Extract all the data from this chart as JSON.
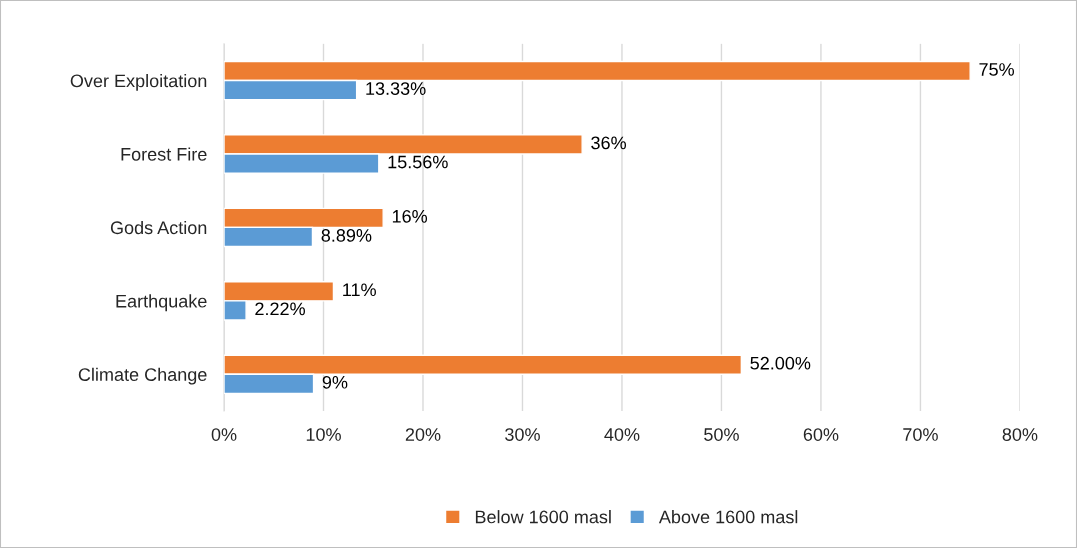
{
  "chart_data": {
    "type": "bar",
    "orientation": "horizontal",
    "categories": [
      "Over Exploitation",
      "Forest Fire",
      "Gods Action",
      "Earthquake",
      "Climate Change"
    ],
    "series": [
      {
        "name": "Below 1600 masl",
        "color": "#ed7d31",
        "values": [
          75,
          36,
          16,
          11,
          52
        ],
        "value_labels": [
          "75%",
          "36%",
          "16%",
          "11%",
          "52.00%"
        ]
      },
      {
        "name": "Above 1600 masl",
        "color": "#5b9bd5",
        "values": [
          13.33,
          15.56,
          8.89,
          2.22,
          9
        ],
        "value_labels": [
          "13.33%",
          "15.56%",
          "8.89%",
          "2.22%",
          "9%"
        ]
      }
    ],
    "xlim": [
      0,
      80
    ],
    "xticks": [
      {
        "value": 0,
        "label": "0%"
      },
      {
        "value": 10,
        "label": "10%"
      },
      {
        "value": 20,
        "label": "20%"
      },
      {
        "value": 30,
        "label": "30%"
      },
      {
        "value": 40,
        "label": "40%"
      },
      {
        "value": 50,
        "label": "50%"
      },
      {
        "value": 60,
        "label": "60%"
      },
      {
        "value": 70,
        "label": "70%"
      },
      {
        "value": 80,
        "label": "80%"
      }
    ],
    "grid": "x",
    "legend": "bottom"
  }
}
